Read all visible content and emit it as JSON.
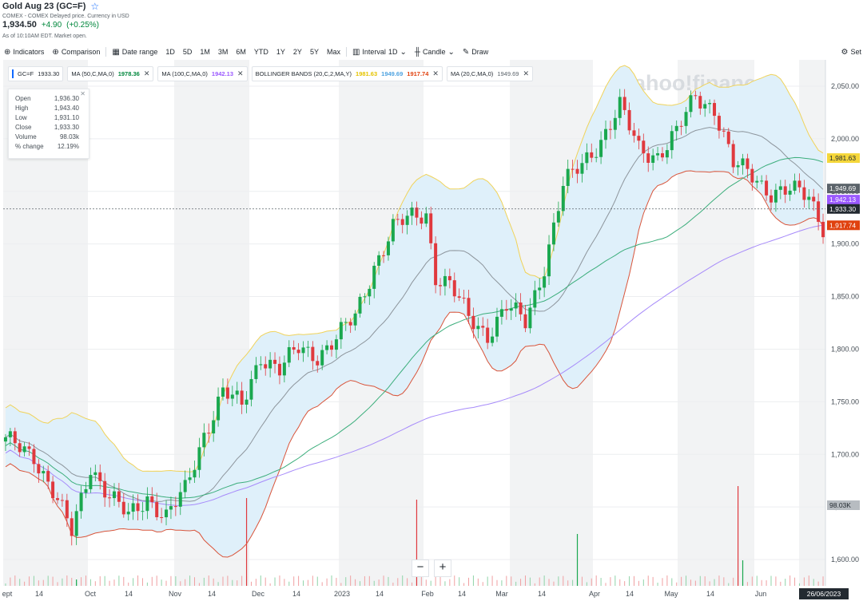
{
  "header": {
    "title": "Gold Aug 23 (GC=F)",
    "subtitle": "COMEX - COMEX Delayed price. Currency in USD",
    "price": "1,934.50",
    "change": "+4.90",
    "change_pct": "(+0.25%)",
    "as_of": "As of 10:10AM EDT. Market open."
  },
  "toolbar": {
    "indicators": "Indicators",
    "comparison": "Comparison",
    "date_range": "Date range",
    "ranges": [
      "1D",
      "5D",
      "1M",
      "3M",
      "6M",
      "YTD",
      "1Y",
      "2Y",
      "5Y",
      "Max"
    ],
    "interval": "Interval",
    "interval_value": "1D",
    "candle": "Candle",
    "draw": "Draw",
    "settings": "Set"
  },
  "chips": [
    {
      "label": "GC=F",
      "value": "1933.30"
    },
    {
      "label": "MA (50,C,MA,0)",
      "value": "1978.36"
    },
    {
      "label": "MA (100,C,MA,0)",
      "value": "1942.13"
    },
    {
      "label": "BOLLINGER BANDS (20,C,2,MA,Y)",
      "upper": "1981.63",
      "middle": "1949.69",
      "lower": "1917.74"
    },
    {
      "label": "MA (20,C,MA,0)",
      "value": "1949.69"
    }
  ],
  "ohlc": {
    "rows": [
      {
        "k": "Open",
        "v": "1,936.30"
      },
      {
        "k": "High",
        "v": "1,943.40"
      },
      {
        "k": "Low",
        "v": "1,931.10"
      },
      {
        "k": "Close",
        "v": "1,933.30"
      },
      {
        "k": "Volume",
        "v": "98.03k"
      },
      {
        "k": "% change",
        "v": "12.19%"
      }
    ]
  },
  "zoom": {
    "minus": "−",
    "plus": "+"
  },
  "watermark": "yahoo!finance",
  "colors": {
    "up": "#1aa84f",
    "down": "#e0393e",
    "ma50": "#3cae7c",
    "ma100": "#a78bfa",
    "bb_upper": "#f0d35a",
    "bb_lower": "#d9553b",
    "bb_middle": "#8d959c",
    "band_fill": "#dff0fa"
  },
  "chart_data": {
    "type": "candlestick",
    "y_ticks": [
      "1,600.00",
      "1,650.00",
      "1,700.00",
      "1,750.00",
      "1,800.00",
      "1,850.00",
      "1,900.00",
      "1,950.00",
      "2,000.00",
      "2,050.00"
    ],
    "ylim": [
      1575,
      2075
    ],
    "x_ticks": [
      "ept",
      "14",
      "Oct",
      "14",
      "Nov",
      "14",
      "Dec",
      "14",
      "2023",
      "14",
      "Feb",
      "14",
      "Mar",
      "14",
      "Apr",
      "14",
      "May",
      "14",
      "Jun"
    ],
    "x_last_label": "26/06/2023",
    "price_tags": [
      {
        "label": "1,981.63",
        "value": 1981.63,
        "color": "#f5d73a",
        "text_color": "#232a31"
      },
      {
        "label": "1,949.69",
        "value": 1949.69,
        "color": "#5b636a",
        "text_color": "#ffffff"
      },
      {
        "label": "1,942.13",
        "value": 1942.13,
        "color": "#9b59ff",
        "text_color": "#ffffff"
      },
      {
        "label": "1,933.30",
        "value": 1933.3,
        "color": "#232a31",
        "text_color": "#ffffff"
      },
      {
        "label": "1,917.74",
        "value": 1917.74,
        "color": "#e0420f",
        "text_color": "#ffffff"
      }
    ],
    "volume_tag": "98.03K",
    "price_anchors": [
      [
        0,
        1712
      ],
      [
        6,
        1700
      ],
      [
        10,
        1665
      ],
      [
        14,
        1625
      ],
      [
        18,
        1690
      ],
      [
        22,
        1660
      ],
      [
        26,
        1640
      ],
      [
        30,
        1660
      ],
      [
        34,
        1640
      ],
      [
        38,
        1665
      ],
      [
        42,
        1720
      ],
      [
        46,
        1760
      ],
      [
        50,
        1745
      ],
      [
        54,
        1795
      ],
      [
        58,
        1780
      ],
      [
        62,
        1800
      ],
      [
        66,
        1795
      ],
      [
        70,
        1810
      ],
      [
        74,
        1830
      ],
      [
        78,
        1880
      ],
      [
        82,
        1915
      ],
      [
        86,
        1925
      ],
      [
        89,
        1930
      ],
      [
        91,
        1870
      ],
      [
        94,
        1860
      ],
      [
        98,
        1830
      ],
      [
        102,
        1815
      ],
      [
        106,
        1840
      ],
      [
        110,
        1825
      ],
      [
        114,
        1880
      ],
      [
        118,
        1955
      ],
      [
        122,
        1975
      ],
      [
        126,
        2000
      ],
      [
        130,
        2030
      ],
      [
        134,
        1990
      ],
      [
        138,
        1985
      ],
      [
        142,
        2005
      ],
      [
        146,
        2040
      ],
      [
        150,
        2030
      ],
      [
        154,
        1975
      ],
      [
        158,
        1965
      ],
      [
        162,
        1950
      ],
      [
        166,
        1950
      ],
      [
        170,
        1945
      ],
      [
        173,
        1918
      ]
    ],
    "volume_spikes": [
      [
        15,
        8
      ],
      [
        51,
        110
      ],
      [
        87,
        108
      ],
      [
        121,
        65
      ],
      [
        155,
        125
      ],
      [
        156,
        32
      ]
    ],
    "notes": "Daily candles with MA(50), MA(100), Bollinger Bands(20,2) overlay; series shapes approximated from the screenshot."
  }
}
